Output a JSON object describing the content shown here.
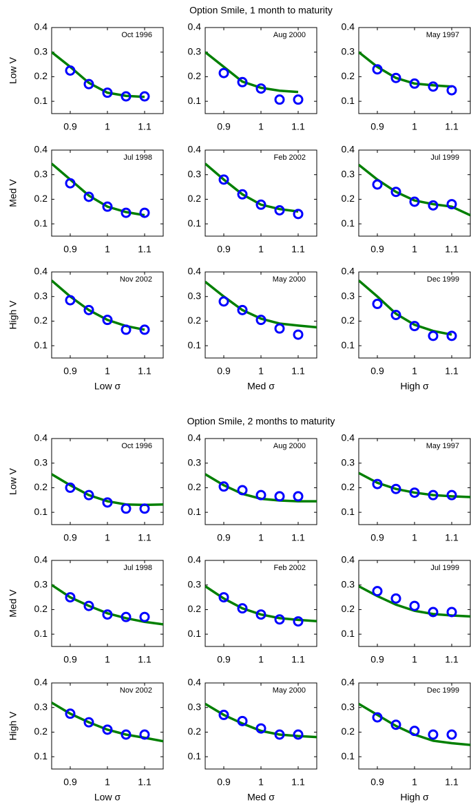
{
  "chart_data": [
    {
      "type": "line",
      "annotation": "Oct 1996",
      "ylabel": "Low V",
      "x": [
        0.85,
        0.9,
        0.95,
        1,
        1.05,
        1.1,
        1.15
      ],
      "xlim": [
        0.85,
        1.15
      ],
      "ylim": [
        0.05,
        0.4
      ],
      "xticks": [
        0.9,
        1,
        1.1
      ],
      "yticks": [
        0.1,
        0.2,
        0.3,
        0.4
      ],
      "series": [
        {
          "style": "line",
          "color": "#007f00",
          "values": [
            0.3,
            0.24,
            0.175,
            0.135,
            0.122,
            0.118,
            null
          ]
        },
        {
          "style": "marker",
          "color": "#0000ff",
          "values": [
            null,
            0.225,
            0.17,
            0.135,
            0.12,
            0.12,
            null
          ]
        }
      ]
    },
    {
      "type": "line",
      "title": "Option Smile, 1 month to maturity",
      "annotation": "Aug 2000",
      "x": [
        0.85,
        0.9,
        0.95,
        1,
        1.05,
        1.1,
        1.15
      ],
      "xlim": [
        0.85,
        1.15
      ],
      "ylim": [
        0.05,
        0.4
      ],
      "xticks": [
        0.9,
        1,
        1.1
      ],
      "yticks": [
        0.1,
        0.2,
        0.3,
        0.4
      ],
      "series": [
        {
          "style": "line",
          "color": "#007f00",
          "values": [
            0.3,
            0.24,
            0.18,
            0.155,
            0.143,
            0.138,
            null
          ]
        },
        {
          "style": "marker",
          "color": "#0000ff",
          "values": [
            null,
            0.215,
            0.178,
            0.152,
            0.107,
            0.107,
            null
          ]
        }
      ]
    },
    {
      "type": "line",
      "annotation": "May 1997",
      "x": [
        0.85,
        0.9,
        0.95,
        1,
        1.05,
        1.1,
        1.15
      ],
      "xlim": [
        0.85,
        1.15
      ],
      "ylim": [
        0.05,
        0.4
      ],
      "xticks": [
        0.9,
        1,
        1.1
      ],
      "yticks": [
        0.1,
        0.2,
        0.3,
        0.4
      ],
      "series": [
        {
          "style": "line",
          "color": "#007f00",
          "values": [
            0.3,
            0.24,
            0.195,
            0.172,
            0.165,
            0.16,
            null
          ]
        },
        {
          "style": "marker",
          "color": "#0000ff",
          "values": [
            null,
            0.23,
            0.195,
            0.172,
            0.16,
            0.145,
            null
          ]
        }
      ]
    },
    {
      "type": "line",
      "annotation": "Jul 1998",
      "ylabel": "Med V",
      "x": [
        0.85,
        0.9,
        0.95,
        1,
        1.05,
        1.1,
        1.15
      ],
      "xlim": [
        0.85,
        1.15
      ],
      "ylim": [
        0.05,
        0.4
      ],
      "xticks": [
        0.9,
        1,
        1.1
      ],
      "yticks": [
        0.1,
        0.2,
        0.3,
        0.4
      ],
      "series": [
        {
          "style": "line",
          "color": "#007f00",
          "values": [
            0.345,
            0.28,
            0.215,
            0.17,
            0.148,
            0.135,
            null
          ]
        },
        {
          "style": "marker",
          "color": "#0000ff",
          "values": [
            null,
            0.265,
            0.21,
            0.17,
            0.145,
            0.145,
            null
          ]
        }
      ]
    },
    {
      "type": "line",
      "annotation": "Feb 2002",
      "x": [
        0.85,
        0.9,
        0.95,
        1,
        1.05,
        1.1,
        1.15
      ],
      "xlim": [
        0.85,
        1.15
      ],
      "ylim": [
        0.05,
        0.4
      ],
      "xticks": [
        0.9,
        1,
        1.1
      ],
      "yticks": [
        0.1,
        0.2,
        0.3,
        0.4
      ],
      "series": [
        {
          "style": "line",
          "color": "#007f00",
          "values": [
            0.345,
            0.28,
            0.22,
            0.178,
            0.16,
            0.15,
            null
          ]
        },
        {
          "style": "marker",
          "color": "#0000ff",
          "values": [
            null,
            0.28,
            0.22,
            0.178,
            0.155,
            0.14,
            null
          ]
        }
      ]
    },
    {
      "type": "line",
      "annotation": "Jul 1999",
      "x": [
        0.85,
        0.9,
        0.95,
        1,
        1.05,
        1.1,
        1.15
      ],
      "xlim": [
        0.85,
        1.15
      ],
      "ylim": [
        0.05,
        0.4
      ],
      "xticks": [
        0.9,
        1,
        1.1
      ],
      "yticks": [
        0.1,
        0.2,
        0.3,
        0.4
      ],
      "series": [
        {
          "style": "line",
          "color": "#007f00",
          "values": [
            0.34,
            0.28,
            0.23,
            0.195,
            0.18,
            0.17,
            0.135
          ]
        },
        {
          "style": "marker",
          "color": "#0000ff",
          "values": [
            null,
            0.26,
            0.23,
            0.19,
            0.175,
            0.18,
            null
          ]
        }
      ]
    },
    {
      "type": "line",
      "annotation": "Nov 2002",
      "ylabel": "High V",
      "xlabel": "Low σ",
      "x": [
        0.85,
        0.9,
        0.95,
        1,
        1.05,
        1.1,
        1.15
      ],
      "xlim": [
        0.85,
        1.15
      ],
      "ylim": [
        0.05,
        0.4
      ],
      "xticks": [
        0.9,
        1,
        1.1
      ],
      "yticks": [
        0.1,
        0.2,
        0.3,
        0.4
      ],
      "series": [
        {
          "style": "line",
          "color": "#007f00",
          "values": [
            0.365,
            0.3,
            0.245,
            0.205,
            0.18,
            0.165,
            null
          ]
        },
        {
          "style": "marker",
          "color": "#0000ff",
          "values": [
            null,
            0.285,
            0.245,
            0.205,
            0.165,
            0.165,
            null
          ]
        }
      ]
    },
    {
      "type": "line",
      "annotation": "May 2000",
      "xlabel": "Med σ",
      "x": [
        0.85,
        0.9,
        0.95,
        1,
        1.05,
        1.1,
        1.15
      ],
      "xlim": [
        0.85,
        1.15
      ],
      "ylim": [
        0.05,
        0.4
      ],
      "xticks": [
        0.9,
        1,
        1.1
      ],
      "yticks": [
        0.1,
        0.2,
        0.3,
        0.4
      ],
      "series": [
        {
          "style": "line",
          "color": "#007f00",
          "values": [
            0.36,
            0.3,
            0.245,
            0.21,
            0.19,
            0.182,
            0.175
          ]
        },
        {
          "style": "marker",
          "color": "#0000ff",
          "values": [
            null,
            0.28,
            0.245,
            0.205,
            0.17,
            0.145,
            null
          ]
        }
      ]
    },
    {
      "type": "line",
      "annotation": "Dec 1999",
      "xlabel": "High σ",
      "x": [
        0.85,
        0.9,
        0.95,
        1,
        1.05,
        1.1,
        1.15
      ],
      "xlim": [
        0.85,
        1.15
      ],
      "ylim": [
        0.05,
        0.4
      ],
      "xticks": [
        0.9,
        1,
        1.1
      ],
      "yticks": [
        0.1,
        0.2,
        0.3,
        0.4
      ],
      "series": [
        {
          "style": "line",
          "color": "#007f00",
          "values": [
            0.365,
            0.3,
            0.23,
            0.185,
            0.16,
            0.145,
            null
          ]
        },
        {
          "style": "marker",
          "color": "#0000ff",
          "values": [
            null,
            0.27,
            0.225,
            0.18,
            0.14,
            0.14,
            null
          ]
        }
      ]
    },
    {
      "type": "line",
      "annotation": "Oct 1996",
      "ylabel": "Low V",
      "x": [
        0.85,
        0.9,
        0.95,
        1,
        1.05,
        1.1,
        1.15
      ],
      "xlim": [
        0.85,
        1.15
      ],
      "ylim": [
        0.05,
        0.4
      ],
      "xticks": [
        0.9,
        1,
        1.1
      ],
      "yticks": [
        0.1,
        0.2,
        0.3,
        0.4
      ],
      "series": [
        {
          "style": "line",
          "color": "#007f00",
          "values": [
            0.255,
            0.21,
            0.17,
            0.145,
            0.132,
            0.13,
            0.132
          ]
        },
        {
          "style": "marker",
          "color": "#0000ff",
          "values": [
            null,
            0.2,
            0.17,
            0.14,
            0.115,
            0.115,
            null
          ]
        }
      ]
    },
    {
      "type": "line",
      "title": "Option Smile, 2 months to maturity",
      "annotation": "Aug 2000",
      "x": [
        0.85,
        0.9,
        0.95,
        1,
        1.05,
        1.1,
        1.15
      ],
      "xlim": [
        0.85,
        1.15
      ],
      "ylim": [
        0.05,
        0.4
      ],
      "xticks": [
        0.9,
        1,
        1.1
      ],
      "yticks": [
        0.1,
        0.2,
        0.3,
        0.4
      ],
      "series": [
        {
          "style": "line",
          "color": "#007f00",
          "values": [
            0.255,
            0.21,
            0.175,
            0.155,
            0.148,
            0.145,
            0.145
          ]
        },
        {
          "style": "marker",
          "color": "#0000ff",
          "values": [
            null,
            0.205,
            0.19,
            0.17,
            0.165,
            0.165,
            null
          ]
        }
      ]
    },
    {
      "type": "line",
      "annotation": "May 1997",
      "x": [
        0.85,
        0.9,
        0.95,
        1,
        1.05,
        1.1,
        1.15
      ],
      "xlim": [
        0.85,
        1.15
      ],
      "ylim": [
        0.05,
        0.4
      ],
      "xticks": [
        0.9,
        1,
        1.1
      ],
      "yticks": [
        0.1,
        0.2,
        0.3,
        0.4
      ],
      "series": [
        {
          "style": "line",
          "color": "#007f00",
          "values": [
            0.26,
            0.22,
            0.195,
            0.18,
            0.17,
            0.165,
            0.162
          ]
        },
        {
          "style": "marker",
          "color": "#0000ff",
          "values": [
            null,
            0.215,
            0.195,
            0.18,
            0.17,
            0.17,
            null
          ]
        }
      ]
    },
    {
      "type": "line",
      "annotation": "Jul 1998",
      "ylabel": "Med V",
      "x": [
        0.85,
        0.9,
        0.95,
        1,
        1.05,
        1.1,
        1.15
      ],
      "xlim": [
        0.85,
        1.15
      ],
      "ylim": [
        0.05,
        0.4
      ],
      "xticks": [
        0.9,
        1,
        1.1
      ],
      "yticks": [
        0.1,
        0.2,
        0.3,
        0.4
      ],
      "series": [
        {
          "style": "line",
          "color": "#007f00",
          "values": [
            0.3,
            0.25,
            0.215,
            0.185,
            0.165,
            0.15,
            0.14
          ]
        },
        {
          "style": "marker",
          "color": "#0000ff",
          "values": [
            null,
            0.25,
            0.215,
            0.18,
            0.17,
            0.17,
            null
          ]
        }
      ]
    },
    {
      "type": "line",
      "annotation": "Feb 2002",
      "x": [
        0.85,
        0.9,
        0.95,
        1,
        1.05,
        1.1,
        1.15
      ],
      "xlim": [
        0.85,
        1.15
      ],
      "ylim": [
        0.05,
        0.4
      ],
      "xticks": [
        0.9,
        1,
        1.1
      ],
      "yticks": [
        0.1,
        0.2,
        0.3,
        0.4
      ],
      "series": [
        {
          "style": "line",
          "color": "#007f00",
          "values": [
            0.295,
            0.245,
            0.205,
            0.18,
            0.165,
            0.158,
            0.153
          ]
        },
        {
          "style": "marker",
          "color": "#0000ff",
          "values": [
            null,
            0.25,
            0.205,
            0.18,
            0.16,
            0.152,
            null
          ]
        }
      ]
    },
    {
      "type": "line",
      "annotation": "Jul 1999",
      "x": [
        0.85,
        0.9,
        0.95,
        1,
        1.05,
        1.1,
        1.15
      ],
      "xlim": [
        0.85,
        1.15
      ],
      "ylim": [
        0.05,
        0.4
      ],
      "xticks": [
        0.9,
        1,
        1.1
      ],
      "yticks": [
        0.1,
        0.2,
        0.3,
        0.4
      ],
      "series": [
        {
          "style": "line",
          "color": "#007f00",
          "values": [
            0.295,
            0.255,
            0.22,
            0.195,
            0.182,
            0.176,
            0.172
          ]
        },
        {
          "style": "marker",
          "color": "#0000ff",
          "values": [
            null,
            0.275,
            0.245,
            0.215,
            0.19,
            0.19,
            null
          ]
        }
      ]
    },
    {
      "type": "line",
      "annotation": "Nov 2002",
      "ylabel": "High V",
      "xlabel": "Low σ",
      "x": [
        0.85,
        0.9,
        0.95,
        1,
        1.05,
        1.1,
        1.15
      ],
      "xlim": [
        0.85,
        1.15
      ],
      "ylim": [
        0.05,
        0.4
      ],
      "xticks": [
        0.9,
        1,
        1.1
      ],
      "yticks": [
        0.1,
        0.2,
        0.3,
        0.4
      ],
      "series": [
        {
          "style": "line",
          "color": "#007f00",
          "values": [
            0.32,
            0.275,
            0.24,
            0.21,
            0.19,
            0.177,
            0.163
          ]
        },
        {
          "style": "marker",
          "color": "#0000ff",
          "values": [
            null,
            0.275,
            0.24,
            0.21,
            0.19,
            0.19,
            null
          ]
        }
      ]
    },
    {
      "type": "line",
      "annotation": "May 2000",
      "xlabel": "Med σ",
      "x": [
        0.85,
        0.9,
        0.95,
        1,
        1.05,
        1.1,
        1.15
      ],
      "xlim": [
        0.85,
        1.15
      ],
      "ylim": [
        0.05,
        0.4
      ],
      "xticks": [
        0.9,
        1,
        1.1
      ],
      "yticks": [
        0.1,
        0.2,
        0.3,
        0.4
      ],
      "series": [
        {
          "style": "line",
          "color": "#007f00",
          "values": [
            0.315,
            0.27,
            0.235,
            0.205,
            0.19,
            0.184,
            0.18
          ]
        },
        {
          "style": "marker",
          "color": "#0000ff",
          "values": [
            null,
            0.27,
            0.245,
            0.215,
            0.19,
            0.19,
            null
          ]
        }
      ]
    },
    {
      "type": "line",
      "annotation": "Dec 1999",
      "xlabel": "High σ",
      "x": [
        0.85,
        0.9,
        0.95,
        1,
        1.05,
        1.1,
        1.15
      ],
      "xlim": [
        0.85,
        1.15
      ],
      "ylim": [
        0.05,
        0.4
      ],
      "xticks": [
        0.9,
        1,
        1.1
      ],
      "yticks": [
        0.1,
        0.2,
        0.3,
        0.4
      ],
      "series": [
        {
          "style": "line",
          "color": "#007f00",
          "values": [
            0.315,
            0.27,
            0.225,
            0.19,
            0.165,
            0.155,
            0.148
          ]
        },
        {
          "style": "marker",
          "color": "#0000ff",
          "values": [
            null,
            0.26,
            0.23,
            0.205,
            0.19,
            0.19,
            null
          ]
        }
      ]
    }
  ]
}
